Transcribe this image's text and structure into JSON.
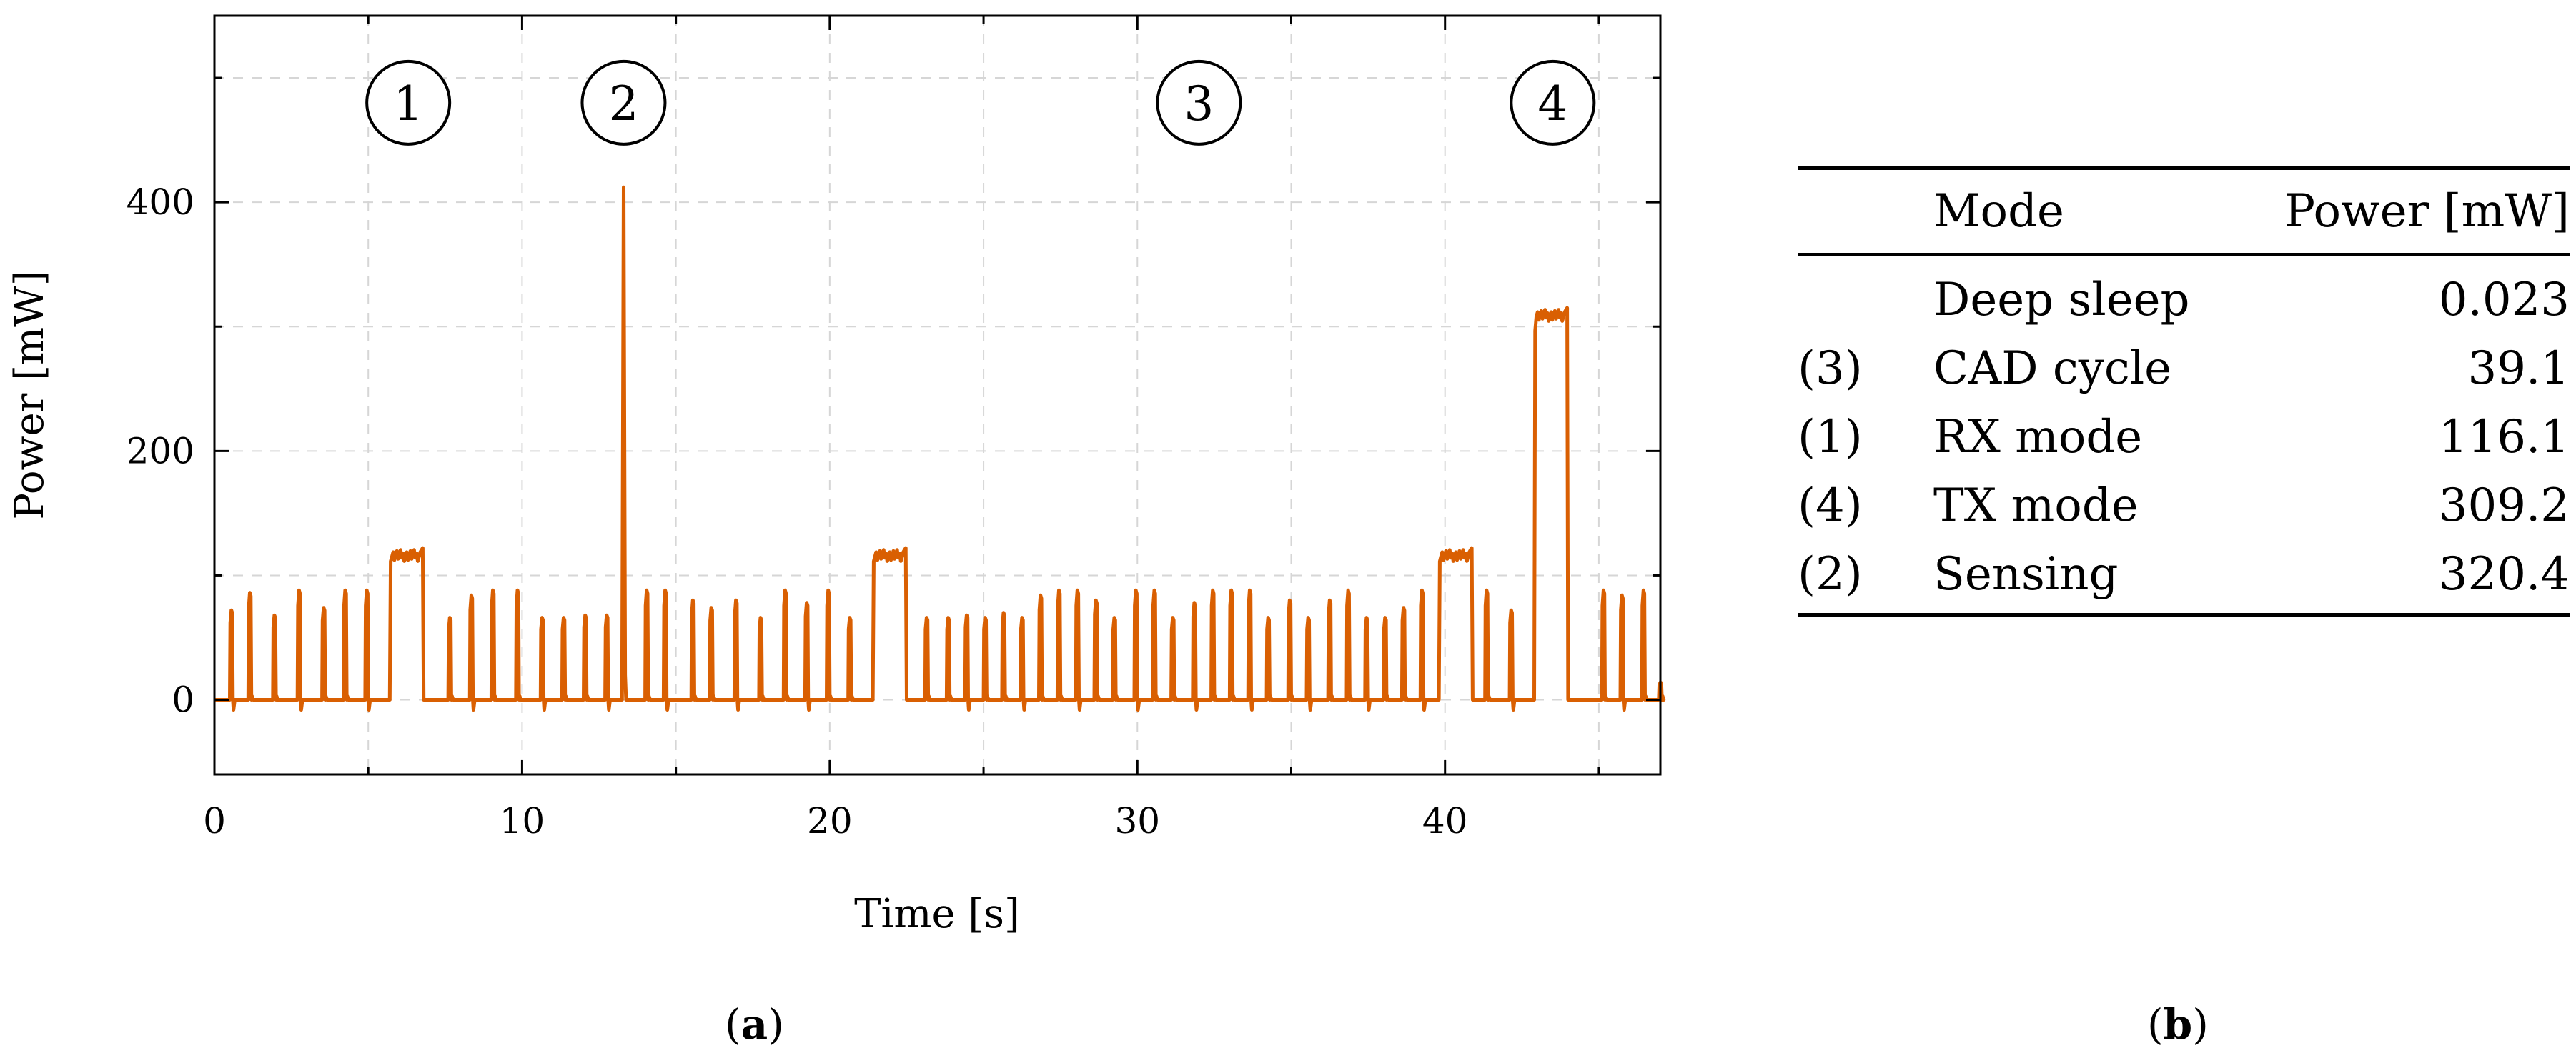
{
  "chart_data": {
    "type": "line",
    "xlabel": "Time [s]",
    "ylabel": "Power [mW]",
    "xlim": [
      0,
      47
    ],
    "ylim": [
      -60,
      550
    ],
    "x_ticks": [
      0,
      10,
      20,
      30,
      40
    ],
    "y_ticks": [
      0,
      200,
      400
    ],
    "grid": true,
    "line_color": "#d95f02",
    "markers": [
      {
        "label": "1",
        "x": 6.3,
        "y": 480
      },
      {
        "label": "2",
        "x": 13.3,
        "y": 480
      },
      {
        "label": "3",
        "x": 32.0,
        "y": 480
      },
      {
        "label": "4",
        "x": 43.5,
        "y": 480
      }
    ],
    "baseline": 0,
    "spikes": [
      {
        "t": 0.5,
        "p": 72
      },
      {
        "t": 1.1,
        "p": 86
      },
      {
        "t": 1.9,
        "p": 68
      },
      {
        "t": 2.7,
        "p": 88
      },
      {
        "t": 3.5,
        "p": 74
      },
      {
        "t": 4.2,
        "p": 88
      },
      {
        "t": 4.9,
        "p": 88
      },
      {
        "t": 7.6,
        "p": 66
      },
      {
        "t": 8.3,
        "p": 84
      },
      {
        "t": 9.0,
        "p": 88
      },
      {
        "t": 9.8,
        "p": 88
      },
      {
        "t": 10.6,
        "p": 66
      },
      {
        "t": 11.3,
        "p": 66
      },
      {
        "t": 12.0,
        "p": 68
      },
      {
        "t": 12.7,
        "p": 68
      },
      {
        "t": 14.0,
        "p": 88
      },
      {
        "t": 14.6,
        "p": 88
      },
      {
        "t": 15.5,
        "p": 80
      },
      {
        "t": 16.1,
        "p": 74
      },
      {
        "t": 16.9,
        "p": 80
      },
      {
        "t": 17.7,
        "p": 66
      },
      {
        "t": 18.5,
        "p": 88
      },
      {
        "t": 19.2,
        "p": 78
      },
      {
        "t": 19.9,
        "p": 88
      },
      {
        "t": 20.6,
        "p": 66
      },
      {
        "t": 23.1,
        "p": 66
      },
      {
        "t": 23.8,
        "p": 66
      },
      {
        "t": 24.4,
        "p": 68
      },
      {
        "t": 25.0,
        "p": 66
      },
      {
        "t": 25.6,
        "p": 70
      },
      {
        "t": 26.2,
        "p": 66
      },
      {
        "t": 26.8,
        "p": 84
      },
      {
        "t": 27.4,
        "p": 88
      },
      {
        "t": 28.0,
        "p": 88
      },
      {
        "t": 28.6,
        "p": 80
      },
      {
        "t": 29.2,
        "p": 66
      },
      {
        "t": 29.9,
        "p": 88
      },
      {
        "t": 30.5,
        "p": 88
      },
      {
        "t": 31.1,
        "p": 66
      },
      {
        "t": 31.8,
        "p": 78
      },
      {
        "t": 32.4,
        "p": 88
      },
      {
        "t": 33.0,
        "p": 88
      },
      {
        "t": 33.6,
        "p": 88
      },
      {
        "t": 34.2,
        "p": 66
      },
      {
        "t": 34.9,
        "p": 80
      },
      {
        "t": 35.5,
        "p": 66
      },
      {
        "t": 36.2,
        "p": 80
      },
      {
        "t": 36.8,
        "p": 88
      },
      {
        "t": 37.4,
        "p": 66
      },
      {
        "t": 38.0,
        "p": 66
      },
      {
        "t": 38.6,
        "p": 74
      },
      {
        "t": 39.2,
        "p": 88
      },
      {
        "t": 41.3,
        "p": 88
      },
      {
        "t": 42.1,
        "p": 72
      },
      {
        "t": 45.1,
        "p": 88
      },
      {
        "t": 45.7,
        "p": 84
      },
      {
        "t": 46.4,
        "p": 88
      },
      {
        "t": 46.95,
        "p": 14
      }
    ],
    "plateaus": [
      {
        "start": 5.7,
        "end": 6.8,
        "p": 116
      },
      {
        "start": 21.4,
        "end": 22.5,
        "p": 116
      },
      {
        "start": 39.8,
        "end": 40.9,
        "p": 116
      },
      {
        "start": 42.9,
        "end": 44.0,
        "p": 309
      }
    ],
    "peak": {
      "t": 13.3,
      "p": 412
    }
  },
  "panel_labels": {
    "a": "a",
    "b": "b"
  },
  "table": {
    "headers": {
      "id": "",
      "mode": "Mode",
      "power": "Power [mW]"
    },
    "rows": [
      {
        "id": "",
        "mode": "Deep sleep",
        "power": "0.023"
      },
      {
        "id": "(3)",
        "mode": "CAD cycle",
        "power": "39.1"
      },
      {
        "id": "(1)",
        "mode": "RX mode",
        "power": "116.1"
      },
      {
        "id": "(4)",
        "mode": "TX mode",
        "power": "309.2"
      },
      {
        "id": "(2)",
        "mode": "Sensing",
        "power": "320.4"
      }
    ]
  }
}
